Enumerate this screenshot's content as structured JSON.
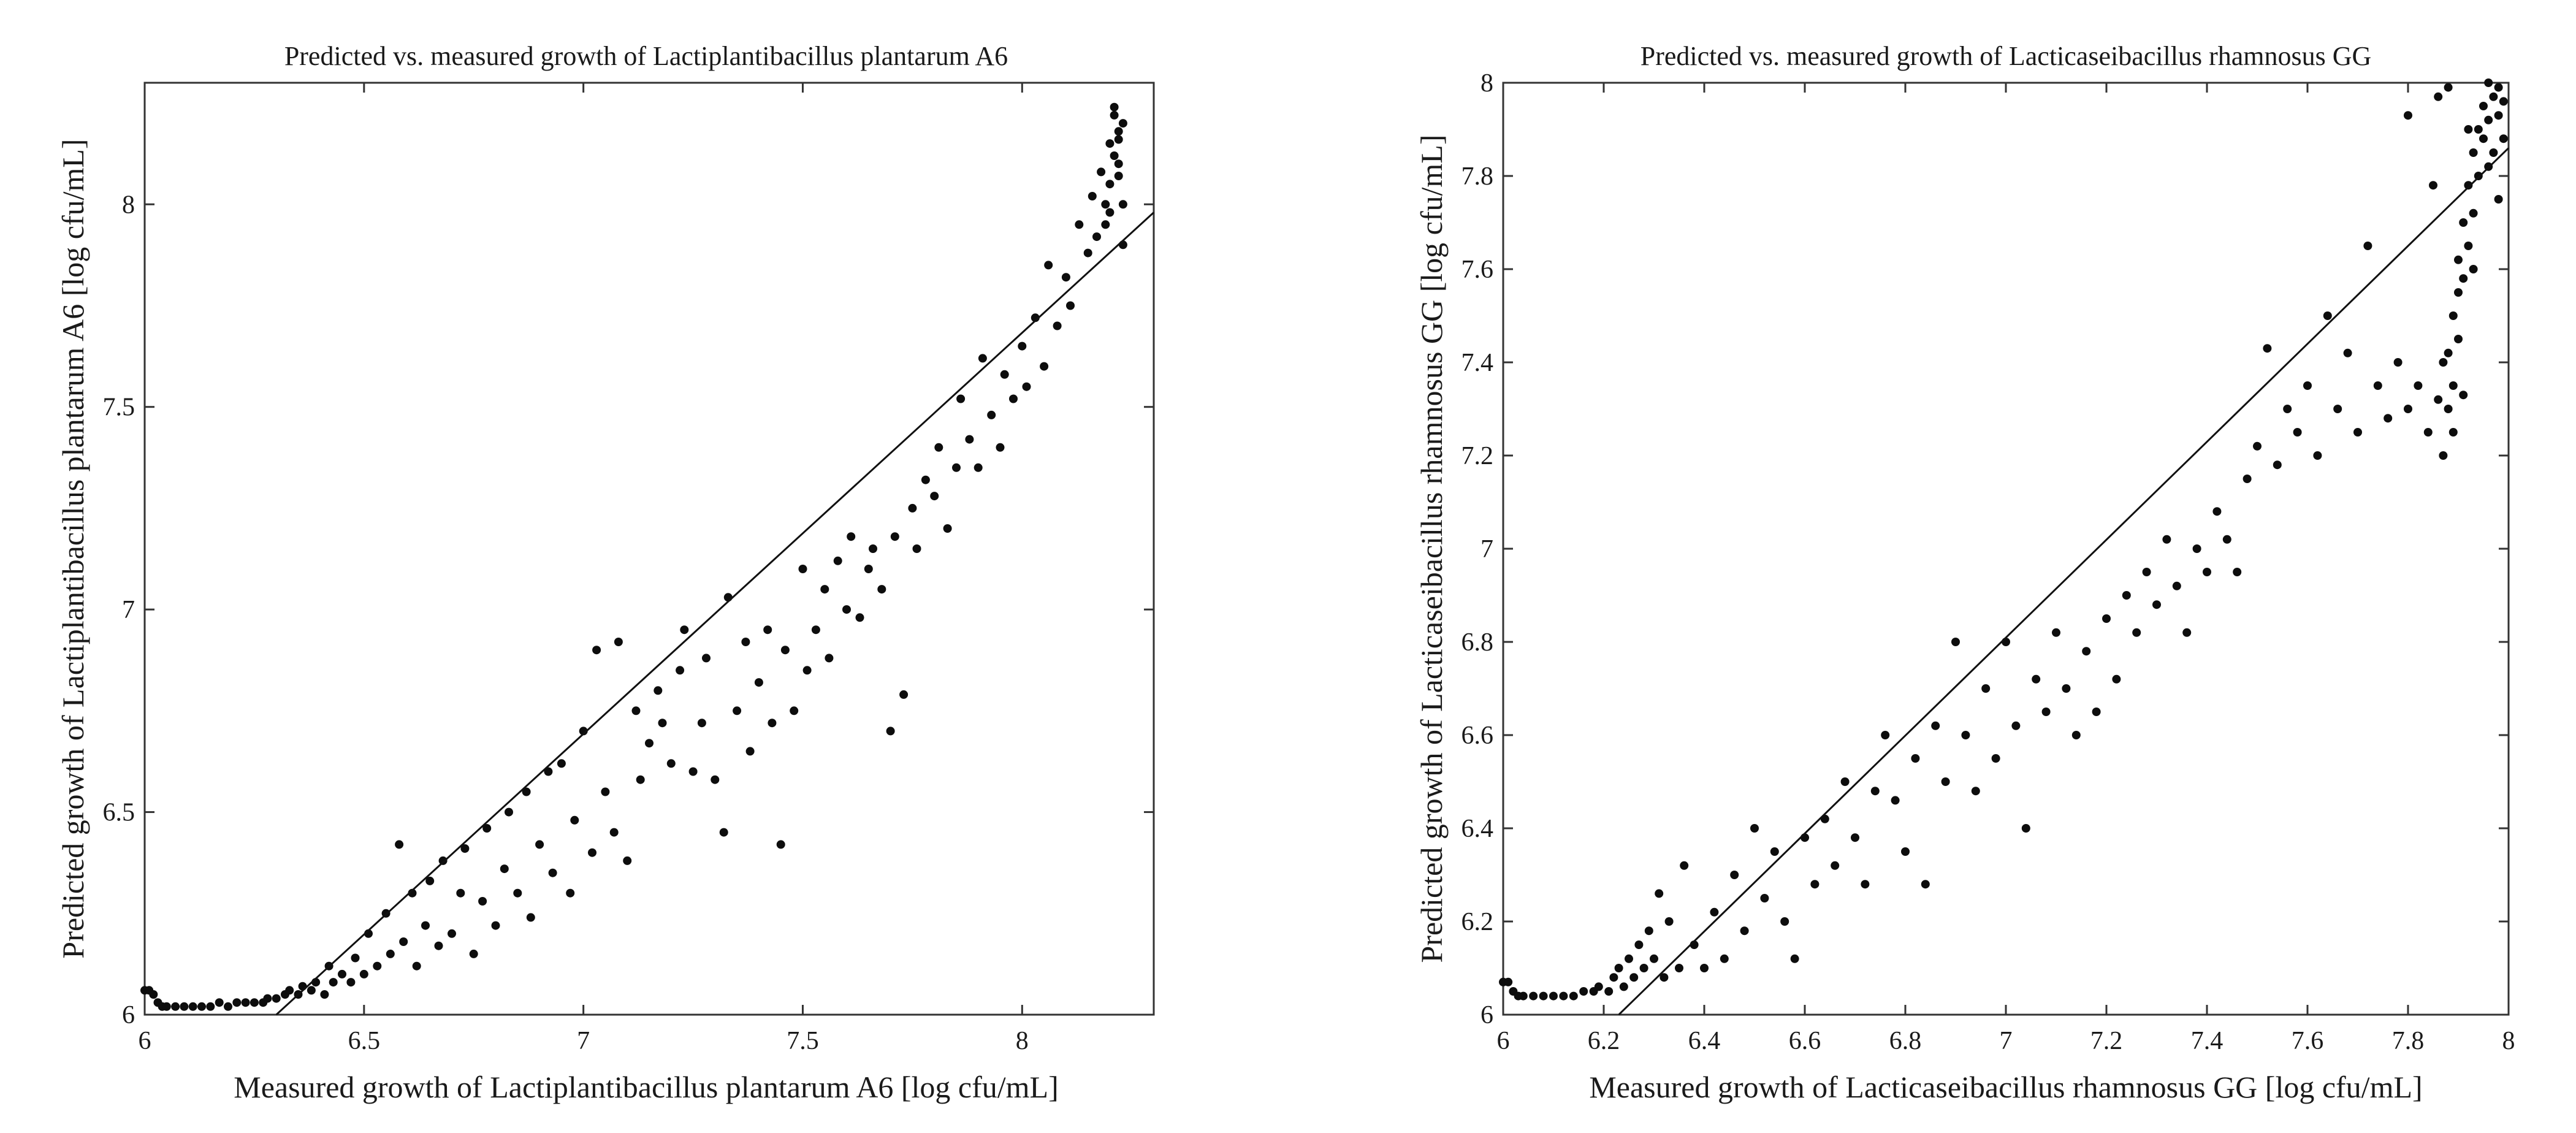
{
  "chart_data": [
    {
      "type": "scatter",
      "title": "Predicted vs. measured growth of Lactiplantibacillus plantarum A6",
      "xlabel": "Measured growth of Lactiplantibacillus plantarum A6 [log cfu/mL]",
      "ylabel": "Predicted growth of Lactiplantibacillus plantarum A6 [log cfu/mL]",
      "xlim": [
        6,
        8.3
      ],
      "ylim": [
        6,
        8.3
      ],
      "xticks": [
        6,
        6.5,
        7,
        7.5,
        8
      ],
      "yticks": [
        6,
        6.5,
        7,
        7.5,
        8
      ],
      "xtick_labels": [
        "6",
        "6.5",
        "7",
        "7.5",
        "8"
      ],
      "ytick_labels": [
        "6",
        "6.5",
        "7",
        "7.5",
        "8"
      ],
      "grid": false,
      "reference_line": {
        "type": "line",
        "points": [
          [
            6.3,
            6.0
          ],
          [
            8.3,
            7.98
          ]
        ]
      },
      "points": [
        [
          6.0,
          6.06
        ],
        [
          6.01,
          6.06
        ],
        [
          6.02,
          6.05
        ],
        [
          6.03,
          6.03
        ],
        [
          6.04,
          6.02
        ],
        [
          6.05,
          6.02
        ],
        [
          6.07,
          6.02
        ],
        [
          6.09,
          6.02
        ],
        [
          6.11,
          6.02
        ],
        [
          6.13,
          6.02
        ],
        [
          6.15,
          6.02
        ],
        [
          6.17,
          6.03
        ],
        [
          6.19,
          6.02
        ],
        [
          6.21,
          6.03
        ],
        [
          6.23,
          6.03
        ],
        [
          6.25,
          6.03
        ],
        [
          6.27,
          6.03
        ],
        [
          6.28,
          6.04
        ],
        [
          6.3,
          6.04
        ],
        [
          6.32,
          6.05
        ],
        [
          6.33,
          6.06
        ],
        [
          6.35,
          6.05
        ],
        [
          6.36,
          6.07
        ],
        [
          6.38,
          6.06
        ],
        [
          6.39,
          6.08
        ],
        [
          6.41,
          6.05
        ],
        [
          6.42,
          6.12
        ],
        [
          6.43,
          6.08
        ],
        [
          6.45,
          6.1
        ],
        [
          6.47,
          6.08
        ],
        [
          6.48,
          6.14
        ],
        [
          6.5,
          6.1
        ],
        [
          6.51,
          6.2
        ],
        [
          6.53,
          6.12
        ],
        [
          6.55,
          6.25
        ],
        [
          6.56,
          6.15
        ],
        [
          6.58,
          6.42
        ],
        [
          6.59,
          6.18
        ],
        [
          6.61,
          6.3
        ],
        [
          6.62,
          6.12
        ],
        [
          6.64,
          6.22
        ],
        [
          6.65,
          6.33
        ],
        [
          6.67,
          6.17
        ],
        [
          6.68,
          6.38
        ],
        [
          6.7,
          6.2
        ],
        [
          6.72,
          6.3
        ],
        [
          6.73,
          6.41
        ],
        [
          6.75,
          6.15
        ],
        [
          6.77,
          6.28
        ],
        [
          6.78,
          6.46
        ],
        [
          6.8,
          6.22
        ],
        [
          6.82,
          6.36
        ],
        [
          6.83,
          6.5
        ],
        [
          6.85,
          6.3
        ],
        [
          6.87,
          6.55
        ],
        [
          6.88,
          6.24
        ],
        [
          6.9,
          6.42
        ],
        [
          6.92,
          6.6
        ],
        [
          6.93,
          6.35
        ],
        [
          6.95,
          6.62
        ],
        [
          6.97,
          6.3
        ],
        [
          6.98,
          6.48
        ],
        [
          7.0,
          6.7
        ],
        [
          7.02,
          6.4
        ],
        [
          7.03,
          6.9
        ],
        [
          7.05,
          6.55
        ],
        [
          7.07,
          6.45
        ],
        [
          7.08,
          6.92
        ],
        [
          7.1,
          6.38
        ],
        [
          7.12,
          6.75
        ],
        [
          7.13,
          6.58
        ],
        [
          7.15,
          6.67
        ],
        [
          7.17,
          6.8
        ],
        [
          7.18,
          6.72
        ],
        [
          7.2,
          6.62
        ],
        [
          7.22,
          6.85
        ],
        [
          7.23,
          6.95
        ],
        [
          7.25,
          6.6
        ],
        [
          7.27,
          6.72
        ],
        [
          7.28,
          6.88
        ],
        [
          7.3,
          6.58
        ],
        [
          7.32,
          6.45
        ],
        [
          7.33,
          7.03
        ],
        [
          7.35,
          6.75
        ],
        [
          7.37,
          6.92
        ],
        [
          7.38,
          6.65
        ],
        [
          7.4,
          6.82
        ],
        [
          7.42,
          6.95
        ],
        [
          7.43,
          6.72
        ],
        [
          7.45,
          6.42
        ],
        [
          7.46,
          6.9
        ],
        [
          7.48,
          6.75
        ],
        [
          7.5,
          7.1
        ],
        [
          7.51,
          6.85
        ],
        [
          7.53,
          6.95
        ],
        [
          7.55,
          7.05
        ],
        [
          7.56,
          6.88
        ],
        [
          7.58,
          7.12
        ],
        [
          7.6,
          7.0
        ],
        [
          7.61,
          7.18
        ],
        [
          7.63,
          6.98
        ],
        [
          7.65,
          7.1
        ],
        [
          7.66,
          7.15
        ],
        [
          7.68,
          7.05
        ],
        [
          7.7,
          6.7
        ],
        [
          7.71,
          7.18
        ],
        [
          7.73,
          6.79
        ],
        [
          7.75,
          7.25
        ],
        [
          7.76,
          7.15
        ],
        [
          7.78,
          7.32
        ],
        [
          7.8,
          7.28
        ],
        [
          7.81,
          7.4
        ],
        [
          7.83,
          7.2
        ],
        [
          7.85,
          7.35
        ],
        [
          7.86,
          7.52
        ],
        [
          7.88,
          7.42
        ],
        [
          7.9,
          7.35
        ],
        [
          7.91,
          7.62
        ],
        [
          7.93,
          7.48
        ],
        [
          7.95,
          7.4
        ],
        [
          7.96,
          7.58
        ],
        [
          7.98,
          7.52
        ],
        [
          8.0,
          7.65
        ],
        [
          8.01,
          7.55
        ],
        [
          8.03,
          7.72
        ],
        [
          8.05,
          7.6
        ],
        [
          8.06,
          7.85
        ],
        [
          8.08,
          7.7
        ],
        [
          8.1,
          7.82
        ],
        [
          8.11,
          7.75
        ],
        [
          8.13,
          7.95
        ],
        [
          8.15,
          7.88
        ],
        [
          8.16,
          8.02
        ],
        [
          8.17,
          7.92
        ],
        [
          8.18,
          8.08
        ],
        [
          8.19,
          8.0
        ],
        [
          8.2,
          8.15
        ],
        [
          8.2,
          8.05
        ],
        [
          8.21,
          8.22
        ],
        [
          8.21,
          8.12
        ],
        [
          8.22,
          8.18
        ],
        [
          8.22,
          8.1
        ],
        [
          8.23,
          8.2
        ],
        [
          8.23,
          8.0
        ],
        [
          8.21,
          8.24
        ],
        [
          8.22,
          8.16
        ],
        [
          8.2,
          7.98
        ],
        [
          8.23,
          7.9
        ],
        [
          8.19,
          7.95
        ],
        [
          8.22,
          8.07
        ]
      ]
    },
    {
      "type": "scatter",
      "title": "Predicted vs. measured growth of Lacticaseibacillus rhamnosus GG",
      "xlabel": "Measured growth of Lacticaseibacillus rhamnosus GG [log cfu/mL]",
      "ylabel": "Predicted growth of Lacticaseibacillus rhamnosus GG [log cfu/mL]",
      "xlim": [
        6,
        8
      ],
      "ylim": [
        6,
        8
      ],
      "xticks": [
        6,
        6.2,
        6.4,
        6.6,
        6.8,
        7,
        7.2,
        7.4,
        7.6,
        7.8,
        8
      ],
      "yticks": [
        6,
        6.2,
        6.4,
        6.6,
        6.8,
        7,
        7.2,
        7.4,
        7.6,
        7.8,
        8
      ],
      "xtick_labels": [
        "6",
        "6.2",
        "6.4",
        "6.6",
        "6.8",
        "7",
        "7.2",
        "7.4",
        "7.6",
        "7.8",
        "8"
      ],
      "ytick_labels": [
        "6",
        "6.2",
        "6.4",
        "6.6",
        "6.8",
        "7",
        "7.2",
        "7.4",
        "7.6",
        "7.8",
        "8"
      ],
      "grid": false,
      "reference_line": {
        "type": "line",
        "points": [
          [
            6.23,
            6.0
          ],
          [
            8.0,
            7.86
          ]
        ]
      },
      "points": [
        [
          6.0,
          6.07
        ],
        [
          6.01,
          6.07
        ],
        [
          6.02,
          6.05
        ],
        [
          6.03,
          6.04
        ],
        [
          6.04,
          6.04
        ],
        [
          6.06,
          6.04
        ],
        [
          6.08,
          6.04
        ],
        [
          6.1,
          6.04
        ],
        [
          6.12,
          6.04
        ],
        [
          6.14,
          6.04
        ],
        [
          6.16,
          6.05
        ],
        [
          6.18,
          6.05
        ],
        [
          6.19,
          6.06
        ],
        [
          6.21,
          6.05
        ],
        [
          6.22,
          6.08
        ],
        [
          6.23,
          6.1
        ],
        [
          6.24,
          6.06
        ],
        [
          6.25,
          6.12
        ],
        [
          6.26,
          6.08
        ],
        [
          6.27,
          6.15
        ],
        [
          6.28,
          6.1
        ],
        [
          6.29,
          6.18
        ],
        [
          6.3,
          6.12
        ],
        [
          6.31,
          6.26
        ],
        [
          6.32,
          6.08
        ],
        [
          6.33,
          6.2
        ],
        [
          6.35,
          6.1
        ],
        [
          6.36,
          6.32
        ],
        [
          6.38,
          6.15
        ],
        [
          6.4,
          6.1
        ],
        [
          6.42,
          6.22
        ],
        [
          6.44,
          6.12
        ],
        [
          6.46,
          6.3
        ],
        [
          6.48,
          6.18
        ],
        [
          6.5,
          6.4
        ],
        [
          6.52,
          6.25
        ],
        [
          6.54,
          6.35
        ],
        [
          6.56,
          6.2
        ],
        [
          6.58,
          6.12
        ],
        [
          6.6,
          6.38
        ],
        [
          6.62,
          6.28
        ],
        [
          6.64,
          6.42
        ],
        [
          6.66,
          6.32
        ],
        [
          6.68,
          6.5
        ],
        [
          6.7,
          6.38
        ],
        [
          6.72,
          6.28
        ],
        [
          6.74,
          6.48
        ],
        [
          6.76,
          6.6
        ],
        [
          6.78,
          6.46
        ],
        [
          6.8,
          6.35
        ],
        [
          6.82,
          6.55
        ],
        [
          6.84,
          6.28
        ],
        [
          6.86,
          6.62
        ],
        [
          6.88,
          6.5
        ],
        [
          6.9,
          6.8
        ],
        [
          6.92,
          6.6
        ],
        [
          6.94,
          6.48
        ],
        [
          6.96,
          6.7
        ],
        [
          6.98,
          6.55
        ],
        [
          7.0,
          6.8
        ],
        [
          7.02,
          6.62
        ],
        [
          7.04,
          6.4
        ],
        [
          7.06,
          6.72
        ],
        [
          7.08,
          6.65
        ],
        [
          7.1,
          6.82
        ],
        [
          7.12,
          6.7
        ],
        [
          7.14,
          6.6
        ],
        [
          7.16,
          6.78
        ],
        [
          7.18,
          6.65
        ],
        [
          7.2,
          6.85
        ],
        [
          7.22,
          6.72
        ],
        [
          7.24,
          6.9
        ],
        [
          7.26,
          6.82
        ],
        [
          7.28,
          6.95
        ],
        [
          7.3,
          6.88
        ],
        [
          7.32,
          7.02
        ],
        [
          7.34,
          6.92
        ],
        [
          7.36,
          6.82
        ],
        [
          7.38,
          7.0
        ],
        [
          7.4,
          6.95
        ],
        [
          7.42,
          7.08
        ],
        [
          7.44,
          7.02
        ],
        [
          7.46,
          6.95
        ],
        [
          7.48,
          7.15
        ],
        [
          7.5,
          7.22
        ],
        [
          7.52,
          7.43
        ],
        [
          7.54,
          7.18
        ],
        [
          7.56,
          7.3
        ],
        [
          7.58,
          7.25
        ],
        [
          7.6,
          7.35
        ],
        [
          7.62,
          7.2
        ],
        [
          7.64,
          7.5
        ],
        [
          7.66,
          7.3
        ],
        [
          7.68,
          7.42
        ],
        [
          7.7,
          7.25
        ],
        [
          7.72,
          7.65
        ],
        [
          7.74,
          7.35
        ],
        [
          7.76,
          7.28
        ],
        [
          7.78,
          7.4
        ],
        [
          7.8,
          7.3
        ],
        [
          7.82,
          7.35
        ],
        [
          7.84,
          7.25
        ],
        [
          7.86,
          7.32
        ],
        [
          7.87,
          7.2
        ],
        [
          7.88,
          7.3
        ],
        [
          7.88,
          7.42
        ],
        [
          7.89,
          7.5
        ],
        [
          7.89,
          7.35
        ],
        [
          7.9,
          7.55
        ],
        [
          7.9,
          7.62
        ],
        [
          7.91,
          7.7
        ],
        [
          7.91,
          7.58
        ],
        [
          7.92,
          7.78
        ],
        [
          7.92,
          7.65
        ],
        [
          7.93,
          7.85
        ],
        [
          7.93,
          7.72
        ],
        [
          7.94,
          7.9
        ],
        [
          7.94,
          7.8
        ],
        [
          7.95,
          7.95
        ],
        [
          7.95,
          7.88
        ],
        [
          7.96,
          8.0
        ],
        [
          7.96,
          7.92
        ],
        [
          7.97,
          7.85
        ],
        [
          7.97,
          7.97
        ],
        [
          7.98,
          7.93
        ],
        [
          7.98,
          7.99
        ],
        [
          7.99,
          7.88
        ],
        [
          7.99,
          7.96
        ],
        [
          7.86,
          7.97
        ],
        [
          7.88,
          7.99
        ],
        [
          7.8,
          7.93
        ],
        [
          7.85,
          7.78
        ],
        [
          7.93,
          7.6
        ],
        [
          7.9,
          7.45
        ],
        [
          7.89,
          7.25
        ],
        [
          7.96,
          7.82
        ],
        [
          7.98,
          7.75
        ],
        [
          7.92,
          7.9
        ],
        [
          7.87,
          7.4
        ],
        [
          7.91,
          7.33
        ]
      ]
    }
  ]
}
